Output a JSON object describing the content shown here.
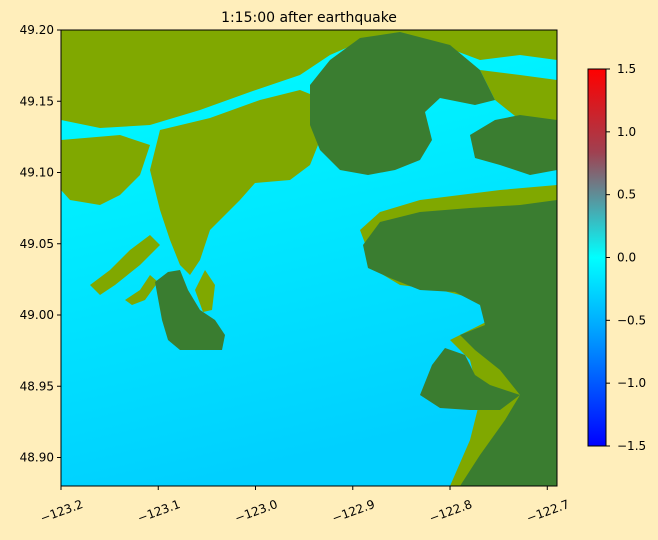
{
  "chart_data": {
    "type": "heatmap",
    "title": "1:15:00 after earthquake",
    "xlabel": "",
    "ylabel": "",
    "xlim": [
      -123.2,
      -122.69
    ],
    "ylim": [
      48.88,
      49.2
    ],
    "x_ticks": [
      -123.2,
      -123.1,
      -123.0,
      -122.9,
      -122.8,
      -122.7
    ],
    "x_tick_labels": [
      "−123.2",
      "−123.1",
      "−123.0",
      "−122.9",
      "−122.8",
      "−122.7"
    ],
    "y_ticks": [
      48.9,
      48.95,
      49.0,
      49.05,
      49.1,
      49.15,
      49.2
    ],
    "y_tick_labels": [
      "48.90",
      "48.95",
      "49.00",
      "49.05",
      "49.10",
      "49.15",
      "49.20"
    ],
    "colorbar": {
      "range": [
        -1.5,
        1.5
      ],
      "ticks": [
        -1.5,
        -1.0,
        -0.5,
        0.0,
        0.5,
        1.0,
        1.5
      ],
      "tick_labels": [
        "−1.5",
        "−1.0",
        "−0.5",
        "0.0",
        "0.5",
        "1.0",
        "1.5"
      ],
      "colors": [
        "#0000ff",
        "#00aaff",
        "#00ffff",
        "#a04050",
        "#ff0000"
      ]
    },
    "water_colors": [
      "#00ffff",
      "#00d0ff"
    ],
    "land_colors": {
      "dry_land": "#3a7d30",
      "flooded_lowland": "#80a800"
    },
    "grid": false
  }
}
